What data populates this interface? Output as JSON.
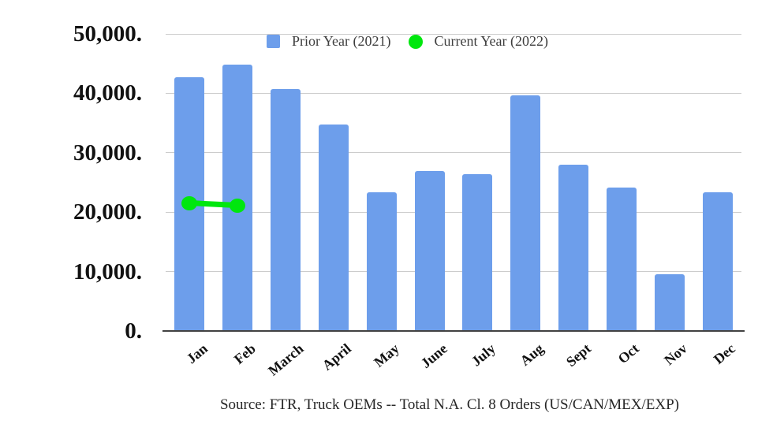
{
  "legend": {
    "items": [
      {
        "label": "Prior Year (2021)",
        "color": "#6d9eeb",
        "shape": "square"
      },
      {
        "label": "Current Year (2022)",
        "color": "#00e70e",
        "shape": "circle"
      }
    ]
  },
  "source_note": "Source: FTR, Truck OEMs -- Total N.A. Cl. 8 Orders (US/CAN/MEX/EXP)",
  "chart_data": {
    "type": "bar",
    "title": "",
    "xlabel": "",
    "ylabel": "",
    "categories": [
      "Jan",
      "Feb",
      "March",
      "April",
      "May",
      "June",
      "July",
      "Aug",
      "Sept",
      "Oct",
      "Nov",
      "Dec"
    ],
    "series": [
      {
        "name": "Prior Year (2021)",
        "type": "bar",
        "color": "#6d9eeb",
        "values": [
          42700,
          44800,
          40700,
          34700,
          23400,
          26900,
          26400,
          39700,
          28000,
          24200,
          9600,
          23300
        ]
      },
      {
        "name": "Current Year (2022)",
        "type": "line",
        "color": "#00e70e",
        "values": [
          21500,
          21100,
          null,
          null,
          null,
          null,
          null,
          null,
          null,
          null,
          null,
          null
        ]
      }
    ],
    "ylim": [
      0,
      50000
    ],
    "ytick_labels": [
      "0.",
      "10,000.",
      "20,000.",
      "30,000.",
      "40,000.",
      "50,000."
    ],
    "grid": "horizontal",
    "legend_position": "top",
    "gridline_color": "#cccccc",
    "axis_line_color": "#424242"
  }
}
